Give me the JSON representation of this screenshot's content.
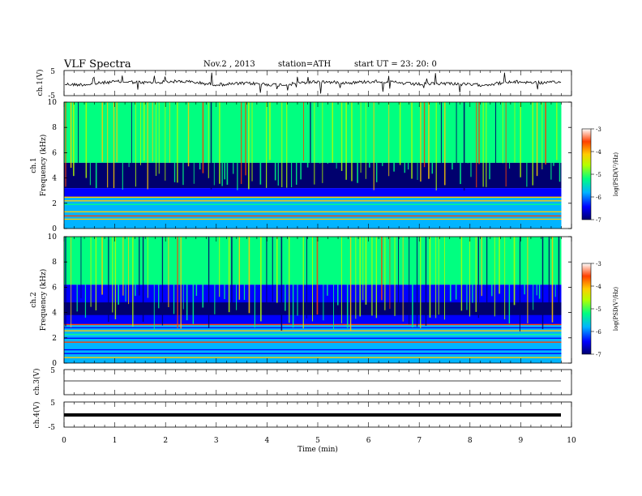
{
  "header": {
    "title": "VLF  Spectra",
    "date": "Nov.2  , 2013",
    "station": "station=ATH",
    "start": "start  UT  =   23: 20: 0"
  },
  "chart_data": [
    {
      "type": "line",
      "panel": "ch1-waveform",
      "ylabel": "ch.1(V)",
      "ylim": [
        -5,
        5
      ],
      "yticks": [
        "5",
        "-5"
      ],
      "series_color": "#000000",
      "xlim": [
        0,
        10
      ],
      "data_extent_min": 9.8
    },
    {
      "type": "heatmap",
      "panel": "ch1-spectrogram",
      "xlim": [
        0,
        10
      ],
      "ylim": [
        0,
        10
      ],
      "ylabel_top": "ch.1",
      "ylabel": "Frequency  (kHz)",
      "yticks": [
        "0",
        "2",
        "4",
        "6",
        "8",
        "10"
      ],
      "colorbar": {
        "label": "log(PSD(V²/Hz)",
        "ticks": [
          "-3",
          "-4",
          "-5",
          "-6",
          "-7"
        ],
        "range": [
          -7,
          -3
        ]
      }
    },
    {
      "type": "heatmap",
      "panel": "ch2-spectrogram",
      "xlim": [
        0,
        10
      ],
      "ylim": [
        0,
        10
      ],
      "ylabel_top": "ch.2",
      "ylabel": "Frequency  (kHz)",
      "yticks": [
        "0",
        "2",
        "4",
        "6",
        "8",
        "10"
      ],
      "colorbar": {
        "label": "log(PSD(V²/Hz)",
        "ticks": [
          "-3",
          "-4",
          "-5",
          "-6",
          "-7"
        ],
        "range": [
          -7,
          -3
        ]
      }
    },
    {
      "type": "line",
      "panel": "ch3-waveform",
      "ylabel": "ch.3(V)",
      "ylim": [
        -5,
        5
      ],
      "yticks": [
        "5"
      ],
      "level": 0
    },
    {
      "type": "line",
      "panel": "ch4-waveform",
      "ylabel": "ch.4(V)",
      "ylim": [
        -5,
        5
      ],
      "yticks": [
        "5",
        "-5"
      ],
      "level": 0
    },
    {
      "type": "axis",
      "xlabel": "Time  (min)",
      "xticks": [
        "0",
        "1",
        "2",
        "3",
        "4",
        "5",
        "6",
        "7",
        "8",
        "9",
        "10"
      ]
    }
  ],
  "colors": {
    "colormap": [
      "#00006e",
      "#0000ff",
      "#00b4ff",
      "#00ff80",
      "#b4ff00",
      "#ffcc00",
      "#ff4000",
      "#ffffff"
    ]
  }
}
